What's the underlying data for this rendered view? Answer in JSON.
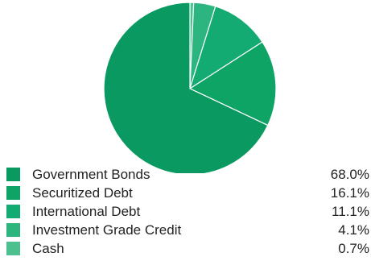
{
  "chart_data": {
    "type": "pie",
    "categories": [
      "Government Bonds",
      "Securitized Debt",
      "International Debt",
      "Investment Grade Credit",
      "Cash"
    ],
    "values": [
      68.0,
      16.1,
      11.1,
      4.1,
      0.7
    ],
    "value_labels": [
      "68.0%",
      "16.1%",
      "11.1%",
      "4.1%",
      "0.7%"
    ],
    "colors": [
      "#0a9a61",
      "#0ea466",
      "#14ab73",
      "#2db57f",
      "#4cc08f"
    ],
    "legend": "bottom",
    "title": ""
  }
}
